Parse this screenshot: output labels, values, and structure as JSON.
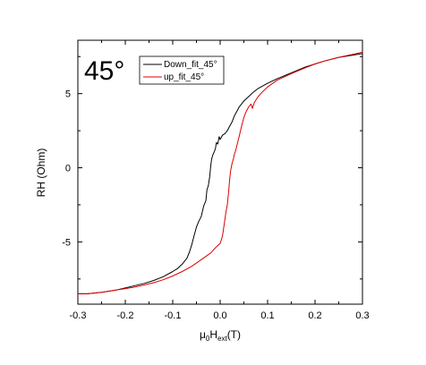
{
  "chart_data": {
    "type": "line",
    "annotation": "45°",
    "xlabel": {
      "base": "μ",
      "sub1": "0",
      "mid": "H",
      "sub2": "ext",
      "tail": "(T)"
    },
    "ylabel": "RH (Ohm)",
    "xlim": [
      -0.3,
      0.3
    ],
    "ylim": [
      -9.2,
      8.6
    ],
    "x_ticks": [
      -0.3,
      -0.2,
      -0.1,
      0.0,
      0.1,
      0.2,
      0.3
    ],
    "x_tick_labels": [
      "-0.3",
      "-0.2",
      "-0.1",
      "0.0",
      "0.1",
      "0.2",
      "0.3"
    ],
    "y_ticks": [
      -5,
      0,
      5
    ],
    "y_tick_labels": [
      "-5",
      "0",
      "5"
    ],
    "grid": false,
    "legend_position": "top-left",
    "series": [
      {
        "name": "Down_fit_45°",
        "color": "#000000",
        "points": [
          [
            -0.3,
            -8.5
          ],
          [
            -0.28,
            -8.5
          ],
          [
            -0.25,
            -8.4
          ],
          [
            -0.22,
            -8.25
          ],
          [
            -0.2,
            -8.1
          ],
          [
            -0.18,
            -7.95
          ],
          [
            -0.16,
            -7.8
          ],
          [
            -0.14,
            -7.6
          ],
          [
            -0.12,
            -7.35
          ],
          [
            -0.1,
            -7.0
          ],
          [
            -0.09,
            -6.8
          ],
          [
            -0.08,
            -6.5
          ],
          [
            -0.07,
            -6.1
          ],
          [
            -0.065,
            -5.7
          ],
          [
            -0.06,
            -5.2
          ],
          [
            -0.055,
            -4.6
          ],
          [
            -0.05,
            -4.0
          ],
          [
            -0.045,
            -3.6
          ],
          [
            -0.04,
            -3.3
          ],
          [
            -0.035,
            -2.6
          ],
          [
            -0.03,
            -2.2
          ],
          [
            -0.028,
            -1.5
          ],
          [
            -0.025,
            -1.2
          ],
          [
            -0.022,
            -0.6
          ],
          [
            -0.02,
            0.1
          ],
          [
            -0.018,
            0.6
          ],
          [
            -0.015,
            0.9
          ],
          [
            -0.012,
            1.1
          ],
          [
            -0.01,
            1.3
          ],
          [
            -0.008,
            1.7
          ],
          [
            -0.005,
            1.6
          ],
          [
            -0.002,
            2.1
          ],
          [
            0.0,
            1.9
          ],
          [
            0.005,
            2.2
          ],
          [
            0.01,
            2.3
          ],
          [
            0.015,
            2.5
          ],
          [
            0.02,
            2.8
          ],
          [
            0.025,
            3.1
          ],
          [
            0.03,
            3.5
          ],
          [
            0.035,
            3.8
          ],
          [
            0.04,
            4.1
          ],
          [
            0.045,
            4.3
          ],
          [
            0.05,
            4.5
          ],
          [
            0.06,
            4.8
          ],
          [
            0.07,
            5.1
          ],
          [
            0.08,
            5.35
          ],
          [
            0.1,
            5.7
          ],
          [
            0.12,
            6.0
          ],
          [
            0.15,
            6.4
          ],
          [
            0.18,
            6.8
          ],
          [
            0.2,
            7.0
          ],
          [
            0.22,
            7.2
          ],
          [
            0.25,
            7.45
          ],
          [
            0.28,
            7.6
          ],
          [
            0.3,
            7.7
          ]
        ]
      },
      {
        "name": "up_fit_45°",
        "color": "#e00000",
        "points": [
          [
            -0.3,
            -8.5
          ],
          [
            -0.28,
            -8.5
          ],
          [
            -0.25,
            -8.4
          ],
          [
            -0.22,
            -8.25
          ],
          [
            -0.2,
            -8.15
          ],
          [
            -0.18,
            -8.05
          ],
          [
            -0.16,
            -7.9
          ],
          [
            -0.14,
            -7.75
          ],
          [
            -0.12,
            -7.55
          ],
          [
            -0.1,
            -7.3
          ],
          [
            -0.08,
            -7.0
          ],
          [
            -0.06,
            -6.65
          ],
          [
            -0.04,
            -6.2
          ],
          [
            -0.02,
            -5.75
          ],
          [
            -0.01,
            -5.4
          ],
          [
            0.0,
            -5.1
          ],
          [
            0.005,
            -4.6
          ],
          [
            0.01,
            -3.5
          ],
          [
            0.012,
            -3.0
          ],
          [
            0.015,
            -2.5
          ],
          [
            0.018,
            -1.6
          ],
          [
            0.02,
            -0.8
          ],
          [
            0.022,
            -0.2
          ],
          [
            0.025,
            0.3
          ],
          [
            0.028,
            0.6
          ],
          [
            0.03,
            0.9
          ],
          [
            0.033,
            1.2
          ],
          [
            0.036,
            1.6
          ],
          [
            0.04,
            2.1
          ],
          [
            0.045,
            2.8
          ],
          [
            0.05,
            3.4
          ],
          [
            0.055,
            3.8
          ],
          [
            0.06,
            4.1
          ],
          [
            0.065,
            4.3
          ],
          [
            0.068,
            4.0
          ],
          [
            0.072,
            4.4
          ],
          [
            0.08,
            4.8
          ],
          [
            0.09,
            5.15
          ],
          [
            0.1,
            5.45
          ],
          [
            0.12,
            5.9
          ],
          [
            0.15,
            6.35
          ],
          [
            0.18,
            6.75
          ],
          [
            0.2,
            7.0
          ],
          [
            0.22,
            7.2
          ],
          [
            0.25,
            7.45
          ],
          [
            0.28,
            7.65
          ],
          [
            0.3,
            7.8
          ]
        ]
      }
    ]
  }
}
